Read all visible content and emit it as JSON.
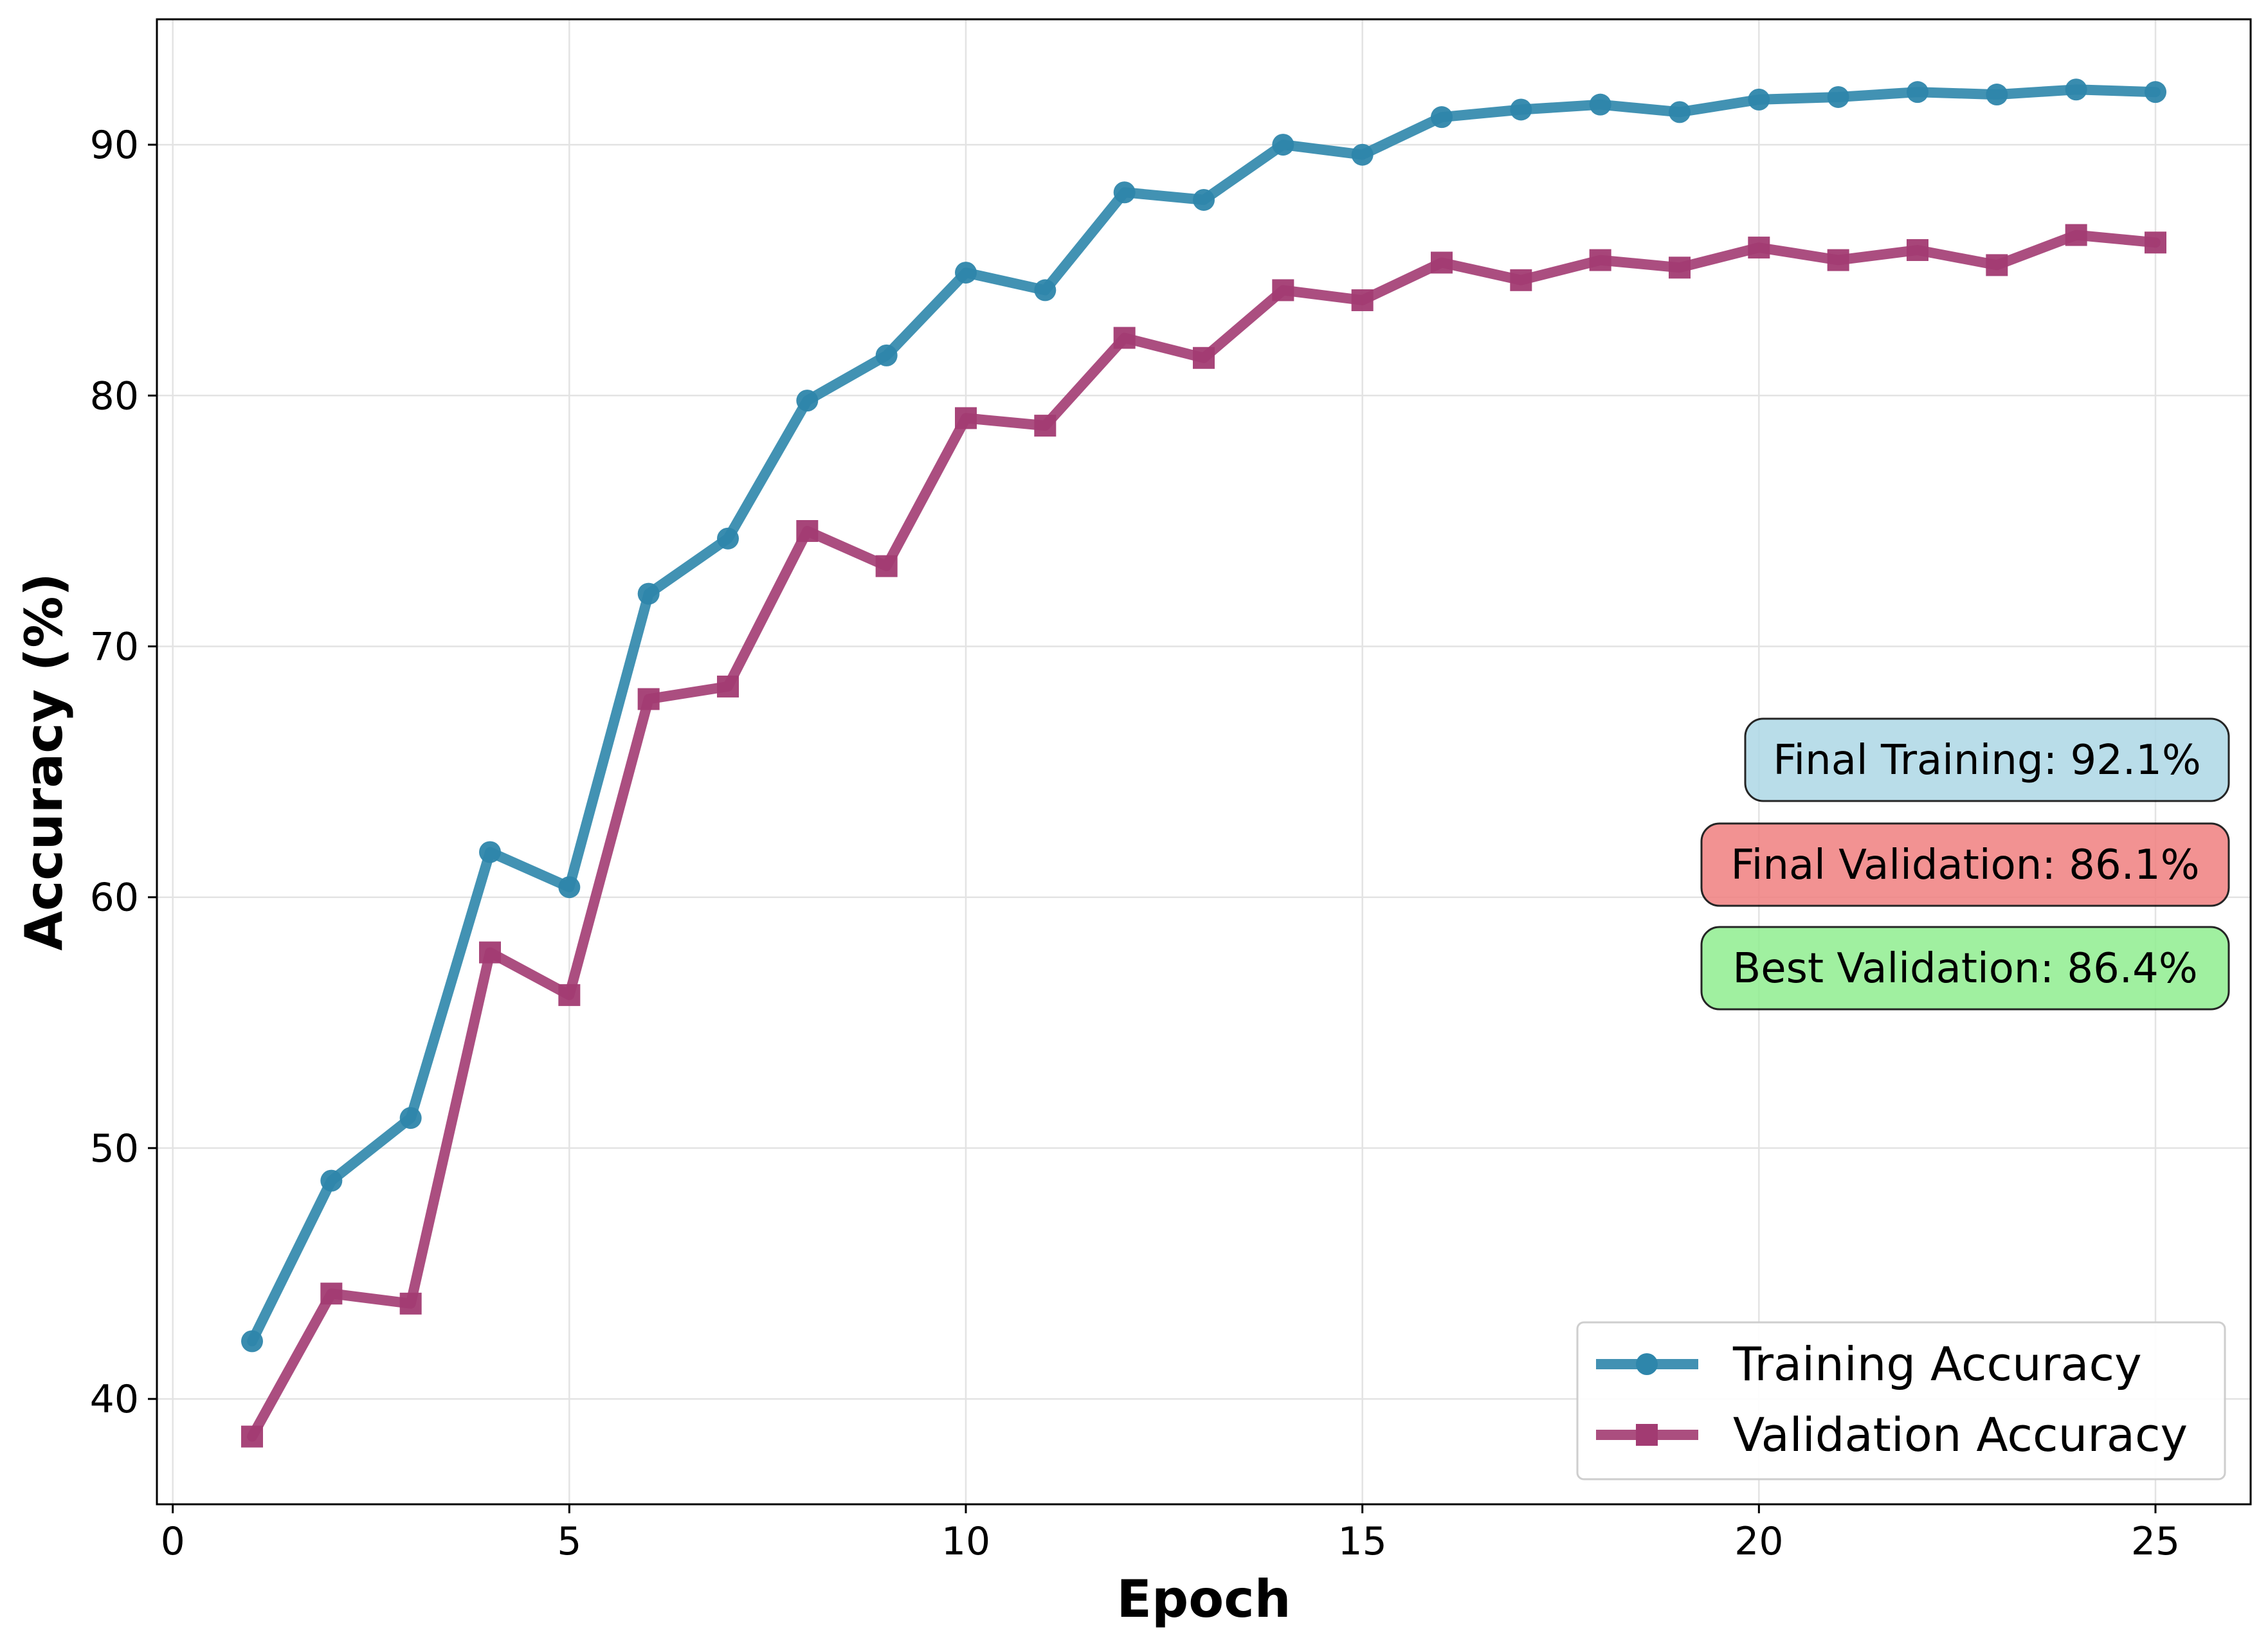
{
  "chart_data": {
    "type": "line",
    "xlabel": "Epoch",
    "ylabel": "Accuracy (%)",
    "xlim": [
      -0.2,
      26.2
    ],
    "ylim": [
      35.8,
      95
    ],
    "xticks": [
      0,
      5,
      10,
      15,
      20,
      25
    ],
    "yticks": [
      40,
      50,
      60,
      70,
      80,
      90
    ],
    "grid": true,
    "legend_position": "lower right",
    "x": [
      1,
      2,
      3,
      4,
      5,
      6,
      7,
      8,
      9,
      10,
      11,
      12,
      13,
      14,
      15,
      16,
      17,
      18,
      19,
      20,
      21,
      22,
      23,
      24,
      25
    ],
    "series": [
      {
        "name": "Training Accuracy",
        "color": "#2e86ab",
        "marker": "circle",
        "values": [
          42.3,
          48.7,
          51.2,
          61.8,
          60.4,
          72.1,
          74.3,
          79.8,
          81.6,
          84.9,
          84.2,
          88.1,
          87.8,
          90.0,
          89.6,
          91.1,
          91.4,
          91.6,
          91.3,
          91.8,
          91.9,
          92.1,
          92.0,
          92.2,
          92.1
        ]
      },
      {
        "name": "Validation Accuracy",
        "color": "#a23b72",
        "marker": "square",
        "values": [
          38.5,
          44.2,
          43.8,
          57.8,
          56.1,
          67.9,
          68.4,
          74.6,
          73.2,
          79.1,
          78.8,
          82.3,
          81.5,
          84.2,
          83.8,
          85.3,
          84.6,
          85.4,
          85.1,
          85.9,
          85.4,
          85.8,
          85.2,
          86.4,
          86.1
        ]
      }
    ],
    "annotations": [
      {
        "text": "Final Training: 92.1%",
        "color": "#add8e6"
      },
      {
        "text": "Final Validation: 86.1%",
        "color": "#f08080"
      },
      {
        "text": "Best Validation: 86.4%",
        "color": "#90ee90"
      }
    ]
  }
}
